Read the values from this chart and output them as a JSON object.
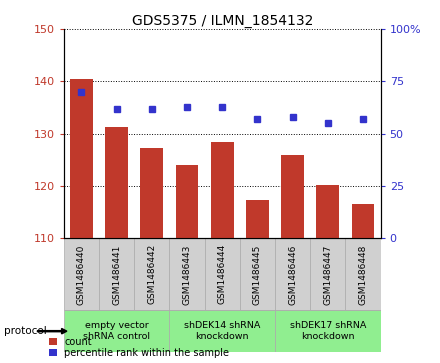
{
  "title": "GDS5375 / ILMN_1854132",
  "samples": [
    "GSM1486440",
    "GSM1486441",
    "GSM1486442",
    "GSM1486443",
    "GSM1486444",
    "GSM1486445",
    "GSM1486446",
    "GSM1486447",
    "GSM1486448"
  ],
  "count_values": [
    140.5,
    131.2,
    127.2,
    124.0,
    128.5,
    117.3,
    126.0,
    120.2,
    116.5
  ],
  "percentile_values": [
    70,
    62,
    62,
    63,
    63,
    57,
    58,
    55,
    57
  ],
  "bar_color": "#c0392b",
  "dot_color": "#3333cc",
  "ylim_left": [
    110,
    150
  ],
  "ylim_right": [
    0,
    100
  ],
  "yticks_left": [
    110,
    120,
    130,
    140,
    150
  ],
  "yticks_right": [
    0,
    25,
    50,
    75,
    100
  ],
  "yticklabels_right": [
    "0",
    "25",
    "50",
    "75",
    "100%"
  ],
  "group_info": [
    {
      "start": 0,
      "end": 2,
      "label": "empty vector\nshRNA control"
    },
    {
      "start": 3,
      "end": 5,
      "label": "shDEK14 shRNA\nknockdown"
    },
    {
      "start": 6,
      "end": 8,
      "label": "shDEK17 shRNA\nknockdown"
    }
  ],
  "protocol_label": "protocol",
  "legend_count_label": "count",
  "legend_percentile_label": "percentile rank within the sample",
  "bar_width": 0.65,
  "background_color": "#ffffff",
  "gray_cell_color": "#d0d0d0",
  "green_cell_color": "#90ee90",
  "cell_edge_color": "#aaaaaa"
}
